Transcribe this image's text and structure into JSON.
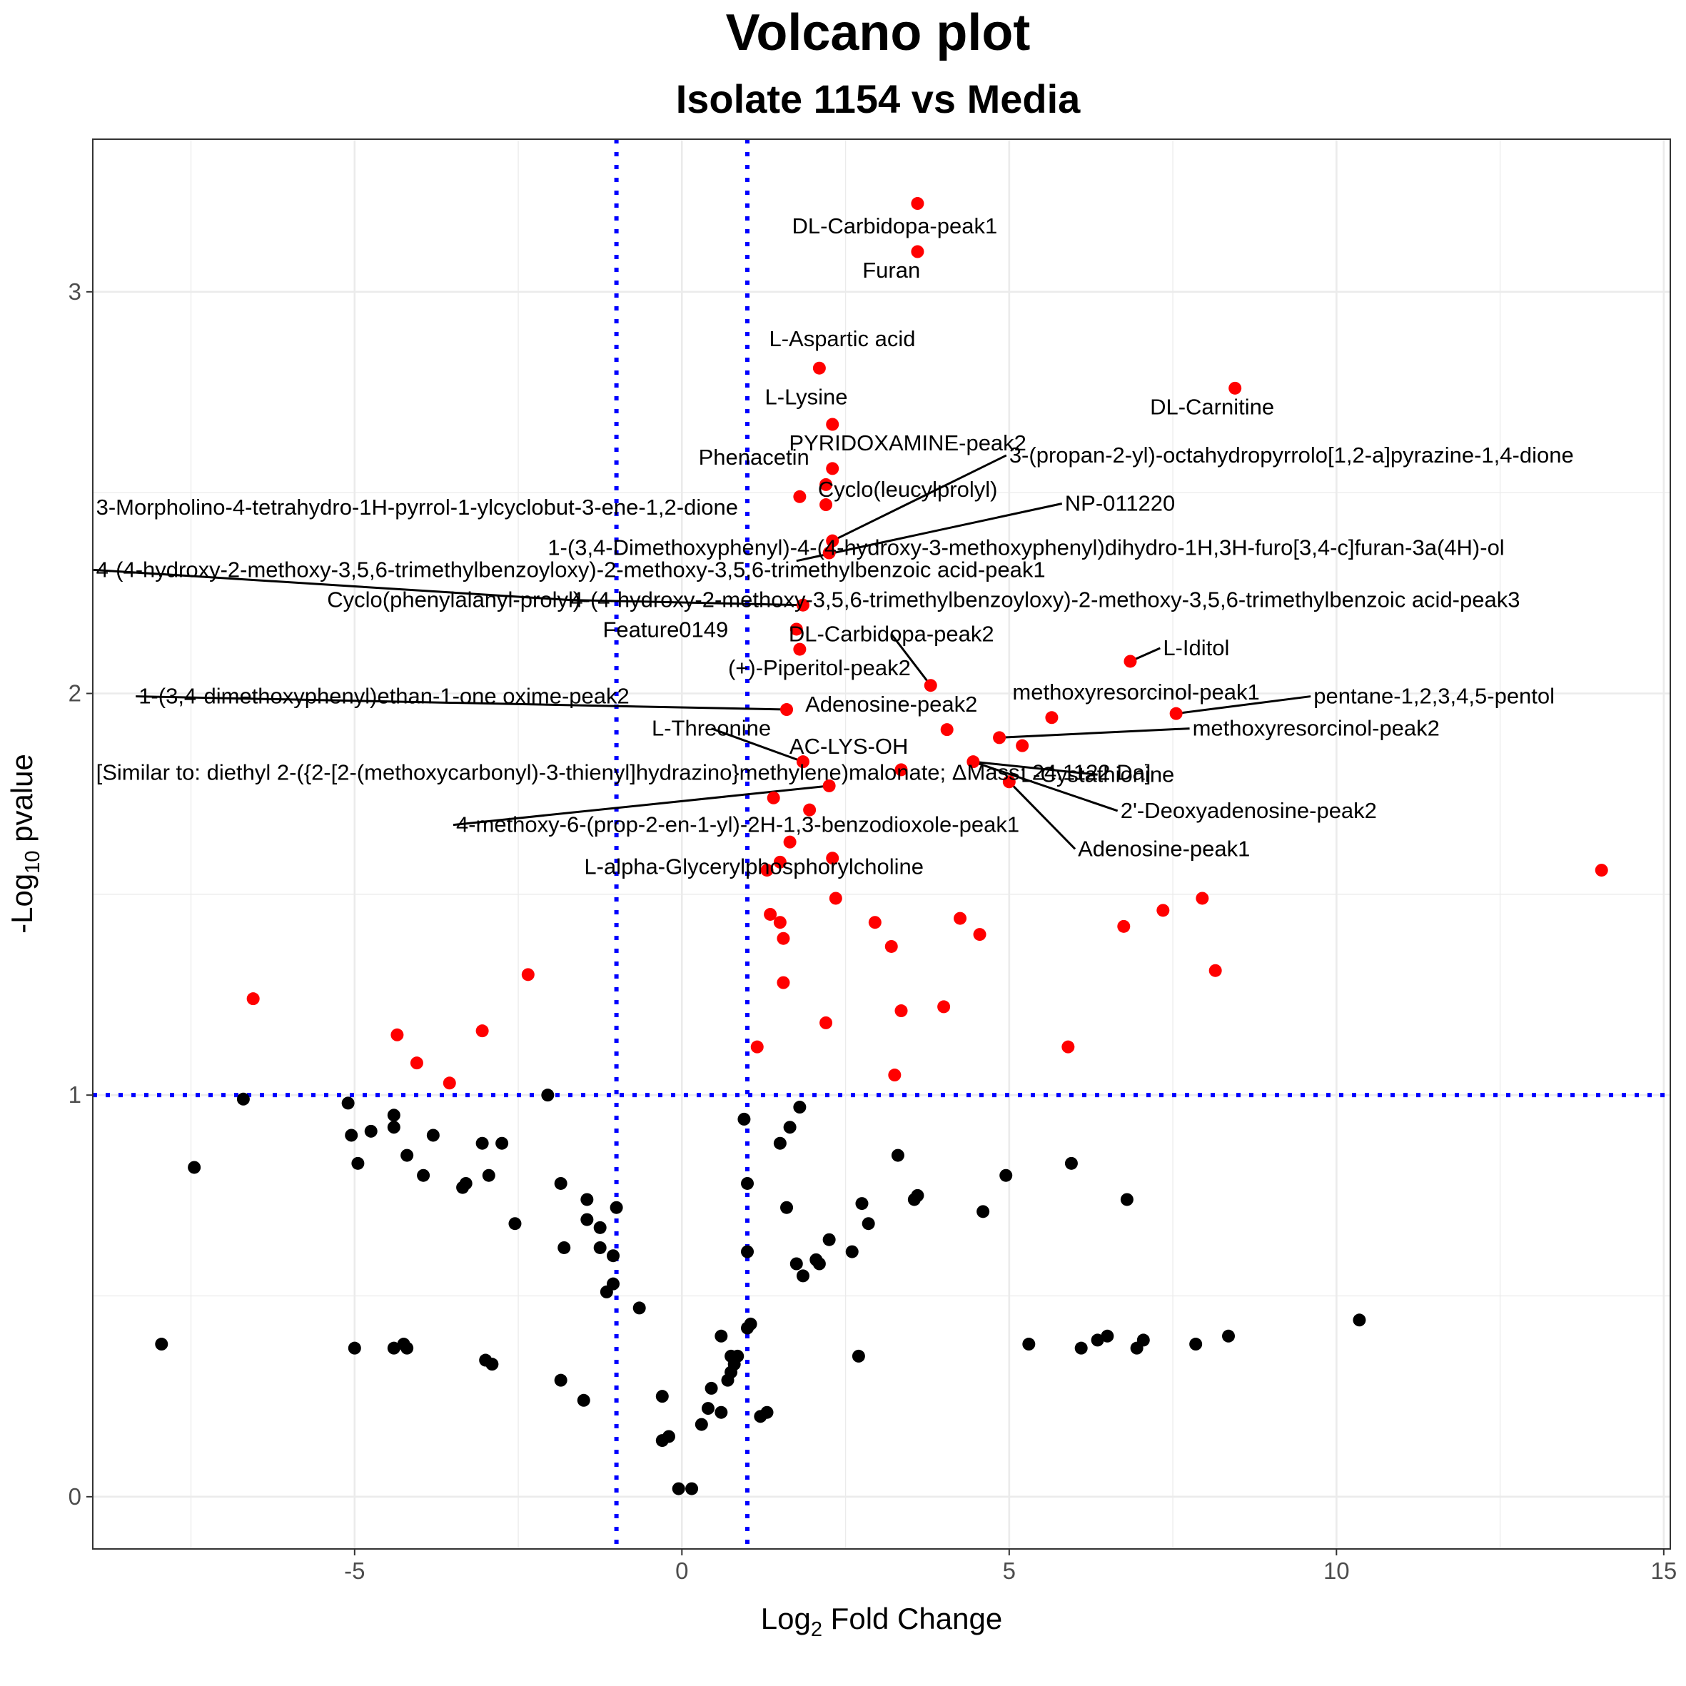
{
  "chart_data": {
    "type": "scatter",
    "title": "Volcano plot",
    "subtitle": "Isolate 1154 vs Media",
    "xlabel": {
      "base": "Log",
      "sub": "2",
      "rest": " Fold Change"
    },
    "ylabel": {
      "base": "-Log",
      "sub": "10",
      "rest": " pvalue"
    },
    "xlim": [
      -9.0,
      15.1
    ],
    "ylim": [
      -0.13,
      3.38
    ],
    "xticks": [
      -5,
      0,
      5,
      10,
      15
    ],
    "xtick_labels": [
      "-5",
      "0",
      "5",
      "10",
      "15"
    ],
    "yticks": [
      0,
      1,
      2,
      3
    ],
    "ytick_labels": [
      "0",
      "1",
      "2",
      "3"
    ],
    "grid": true,
    "thresholds": {
      "fold_change": [
        -1,
        1
      ],
      "pvalue_neglog10": 1
    },
    "colors": {
      "significant": "#ff0000",
      "not_significant": "#000000",
      "threshold_line": "#0000ff",
      "grid": "#ebebeb",
      "panel_border": "#333333"
    },
    "significant_points": [
      [
        3.6,
        3.22
      ],
      [
        3.6,
        3.1
      ],
      [
        2.1,
        2.81
      ],
      [
        8.45,
        2.76
      ],
      [
        2.3,
        2.67
      ],
      [
        2.3,
        2.56
      ],
      [
        2.2,
        2.52
      ],
      [
        1.8,
        2.49
      ],
      [
        2.2,
        2.47
      ],
      [
        2.3,
        2.38
      ],
      [
        2.25,
        2.35
      ],
      [
        1.85,
        2.22
      ],
      [
        1.75,
        2.16
      ],
      [
        1.8,
        2.11
      ],
      [
        6.85,
        2.08
      ],
      [
        3.8,
        2.02
      ],
      [
        1.6,
        1.96
      ],
      [
        5.65,
        1.94
      ],
      [
        7.55,
        1.95
      ],
      [
        4.05,
        1.91
      ],
      [
        4.85,
        1.89
      ],
      [
        5.2,
        1.87
      ],
      [
        1.85,
        1.83
      ],
      [
        4.45,
        1.83
      ],
      [
        3.35,
        1.81
      ],
      [
        5.0,
        1.78
      ],
      [
        2.25,
        1.77
      ],
      [
        1.4,
        1.74
      ],
      [
        1.95,
        1.71
      ],
      [
        1.65,
        1.63
      ],
      [
        2.3,
        1.59
      ],
      [
        1.5,
        1.58
      ],
      [
        1.3,
        1.56
      ],
      [
        14.05,
        1.56
      ],
      [
        2.35,
        1.49
      ],
      [
        7.95,
        1.49
      ],
      [
        1.35,
        1.45
      ],
      [
        7.35,
        1.46
      ],
      [
        4.25,
        1.44
      ],
      [
        1.5,
        1.43
      ],
      [
        2.95,
        1.43
      ],
      [
        6.75,
        1.42
      ],
      [
        4.55,
        1.4
      ],
      [
        1.55,
        1.39
      ],
      [
        3.2,
        1.37
      ],
      [
        -2.35,
        1.3
      ],
      [
        8.15,
        1.31
      ],
      [
        1.55,
        1.28
      ],
      [
        -6.55,
        1.24
      ],
      [
        4.0,
        1.22
      ],
      [
        3.35,
        1.21
      ],
      [
        2.2,
        1.18
      ],
      [
        -3.05,
        1.16
      ],
      [
        -4.35,
        1.15
      ],
      [
        1.15,
        1.12
      ],
      [
        5.9,
        1.12
      ],
      [
        -4.05,
        1.08
      ],
      [
        3.25,
        1.05
      ],
      [
        -3.55,
        1.03
      ]
    ],
    "nonsignificant_points": [
      [
        -6.7,
        0.99
      ],
      [
        -2.05,
        1.0
      ],
      [
        -5.1,
        0.98
      ],
      [
        1.8,
        0.97
      ],
      [
        -4.4,
        0.95
      ],
      [
        0.95,
        0.94
      ],
      [
        1.65,
        0.92
      ],
      [
        -4.4,
        0.92
      ],
      [
        -4.75,
        0.91
      ],
      [
        -5.05,
        0.9
      ],
      [
        -3.8,
        0.9
      ],
      [
        1.5,
        0.88
      ],
      [
        -3.05,
        0.88
      ],
      [
        -2.75,
        0.88
      ],
      [
        3.3,
        0.85
      ],
      [
        -4.2,
        0.85
      ],
      [
        -4.95,
        0.83
      ],
      [
        5.95,
        0.83
      ],
      [
        -3.95,
        0.8
      ],
      [
        4.95,
        0.8
      ],
      [
        -2.95,
        0.8
      ],
      [
        -7.45,
        0.82
      ],
      [
        -1.85,
        0.78
      ],
      [
        1.0,
        0.78
      ],
      [
        -3.3,
        0.78
      ],
      [
        -3.35,
        0.77
      ],
      [
        -1.45,
        0.74
      ],
      [
        3.6,
        0.75
      ],
      [
        3.55,
        0.74
      ],
      [
        6.8,
        0.74
      ],
      [
        2.75,
        0.73
      ],
      [
        -1.0,
        0.72
      ],
      [
        1.6,
        0.72
      ],
      [
        4.6,
        0.71
      ],
      [
        -1.45,
        0.69
      ],
      [
        -2.55,
        0.68
      ],
      [
        2.85,
        0.68
      ],
      [
        -1.25,
        0.67
      ],
      [
        2.25,
        0.64
      ],
      [
        -1.8,
        0.62
      ],
      [
        -1.25,
        0.62
      ],
      [
        1.0,
        0.61
      ],
      [
        2.6,
        0.61
      ],
      [
        -1.05,
        0.6
      ],
      [
        2.05,
        0.59
      ],
      [
        2.1,
        0.58
      ],
      [
        1.75,
        0.58
      ],
      [
        1.85,
        0.55
      ],
      [
        -1.05,
        0.53
      ],
      [
        -1.15,
        0.51
      ],
      [
        -0.65,
        0.47
      ],
      [
        1.05,
        0.43
      ],
      [
        10.35,
        0.44
      ],
      [
        1.0,
        0.42
      ],
      [
        0.6,
        0.4
      ],
      [
        -7.95,
        0.38
      ],
      [
        8.35,
        0.4
      ],
      [
        6.35,
        0.39
      ],
      [
        6.5,
        0.4
      ],
      [
        7.05,
        0.39
      ],
      [
        7.85,
        0.38
      ],
      [
        5.3,
        0.38
      ],
      [
        -4.25,
        0.38
      ],
      [
        6.95,
        0.37
      ],
      [
        -5.0,
        0.37
      ],
      [
        -4.4,
        0.37
      ],
      [
        -4.2,
        0.37
      ],
      [
        6.1,
        0.37
      ],
      [
        0.85,
        0.35
      ],
      [
        0.75,
        0.35
      ],
      [
        2.7,
        0.35
      ],
      [
        -3.0,
        0.34
      ],
      [
        0.8,
        0.33
      ],
      [
        -2.9,
        0.33
      ],
      [
        0.75,
        0.31
      ],
      [
        -1.85,
        0.29
      ],
      [
        0.7,
        0.29
      ],
      [
        0.45,
        0.27
      ],
      [
        -1.5,
        0.24
      ],
      [
        -0.3,
        0.25
      ],
      [
        0.4,
        0.22
      ],
      [
        1.3,
        0.21
      ],
      [
        0.6,
        0.21
      ],
      [
        1.2,
        0.2
      ],
      [
        0.3,
        0.18
      ],
      [
        -0.2,
        0.15
      ],
      [
        -0.3,
        0.14
      ],
      [
        0.15,
        0.02
      ],
      [
        -0.05,
        0.02
      ]
    ],
    "labels": [
      {
        "text": "DL-Carbidopa-peak1",
        "tx": 3.25,
        "ty": 3.145,
        "anchor": "middle",
        "px": 3.6,
        "py": 3.22,
        "line": false
      },
      {
        "text": "Furan",
        "tx": 3.2,
        "ty": 3.035,
        "anchor": "middle",
        "px": 3.6,
        "py": 3.1,
        "line": false
      },
      {
        "text": "L-Aspartic acid",
        "tx": 2.45,
        "ty": 2.865,
        "anchor": "middle",
        "px": 2.1,
        "py": 2.81,
        "line": false
      },
      {
        "text": "DL-Carnitine",
        "tx": 8.1,
        "ty": 2.695,
        "anchor": "middle",
        "px": 8.45,
        "py": 2.76,
        "line": false
      },
      {
        "text": "L-Lysine",
        "tx": 1.9,
        "ty": 2.72,
        "anchor": "middle",
        "px": 2.3,
        "py": 2.67,
        "line": false
      },
      {
        "text": "PYRIDOXAMINE-peak2",
        "tx": 3.45,
        "ty": 2.605,
        "anchor": "middle",
        "px": 2.3,
        "py": 2.56,
        "line": false
      },
      {
        "text": "Phenacetin",
        "tx": 1.1,
        "ty": 2.57,
        "anchor": "middle",
        "px": 2.2,
        "py": 2.52,
        "line": false
      },
      {
        "text": "3-(propan-2-yl)-octahydropyrrolo[1,2-a]pyrazine-1,4-dione",
        "tx": 5.0,
        "ty": 2.575,
        "anchor": "start",
        "px": 2.3,
        "py": 2.38,
        "line": true
      },
      {
        "text": "Cyclo(leucylprolyl)",
        "tx": 3.45,
        "ty": 2.49,
        "anchor": "middle",
        "px": 2.2,
        "py": 2.47,
        "line": false
      },
      {
        "text": "NP-011220",
        "tx": 5.85,
        "ty": 2.455,
        "anchor": "start",
        "px": 1.75,
        "py": 2.33,
        "line": true
      },
      {
        "text": "3-Morpholino-4-tetrahydro-1H-pyrrol-1-ylcyclobut-3-ene-1,2-dione",
        "tx": -8.95,
        "ty": 2.445,
        "anchor": "start",
        "px": 2.25,
        "py": 2.35,
        "line": false
      },
      {
        "text": "1-(3,4-Dimethoxyphenyl)-4-(4-hydroxy-3-methoxyphenyl)dihydro-1H,3H-furo[3,4-c]furan-3a(4H)-ol",
        "tx": -2.05,
        "ty": 2.345,
        "anchor": "start",
        "px": 1.6,
        "py": 2.31,
        "line": false
      },
      {
        "text": "4-(4-hydroxy-2-methoxy-3,5,6-trimethylbenzoyloxy)-2-methoxy-3,5,6-trimethylbenzoic acid-peak1",
        "tx": -8.95,
        "ty": 2.29,
        "anchor": "start",
        "px": -1.45,
        "py": 2.23,
        "line": true
      },
      {
        "text": "4-(4-hydroxy-2-methoxy-3,5,6-trimethylbenzoyloxy)-2-methoxy-3,5,6-trimethylbenzoic acid-peak3",
        "tx": -1.7,
        "ty": 2.215,
        "anchor": "start",
        "px": 1.85,
        "py": 2.22,
        "line": true
      },
      {
        "text": "Cyclo(phenylalanyl-prolyl)",
        "tx": -1.55,
        "ty": 2.215,
        "anchor": "end",
        "px": -1.45,
        "py": 2.23,
        "line": false
      },
      {
        "text": "Feature0149",
        "tx": -0.25,
        "ty": 2.14,
        "anchor": "middle",
        "px": 1.75,
        "py": 2.16,
        "line": false
      },
      {
        "text": "DL-Carbidopa-peak2",
        "tx": 3.2,
        "ty": 2.13,
        "anchor": "middle",
        "px": 3.8,
        "py": 2.02,
        "line": true
      },
      {
        "text": "L-Iditol",
        "tx": 7.35,
        "ty": 2.095,
        "anchor": "start",
        "px": 6.85,
        "py": 2.08,
        "line": true
      },
      {
        "text": "(+)-Piperitol-peak2",
        "tx": 2.1,
        "ty": 2.045,
        "anchor": "middle",
        "px": 1.8,
        "py": 2.11,
        "line": false
      },
      {
        "text": "1-(3,4-dimethoxyphenyl)ethan-1-one oxime-peak2",
        "tx": -8.3,
        "ty": 1.975,
        "anchor": "start",
        "px": 1.6,
        "py": 1.96,
        "line": true
      },
      {
        "text": "methoxyresorcinol-peak1",
        "tx": 5.05,
        "ty": 1.985,
        "anchor": "start",
        "px": 5.65,
        "py": 1.94,
        "line": false
      },
      {
        "text": "pentane-1,2,3,4,5-pentol",
        "tx": 9.65,
        "ty": 1.975,
        "anchor": "start",
        "px": 7.55,
        "py": 1.95,
        "line": true
      },
      {
        "text": "Adenosine-peak2",
        "tx": 3.2,
        "ty": 1.955,
        "anchor": "middle",
        "px": 4.05,
        "py": 1.91,
        "line": false
      },
      {
        "text": "L-Threonine",
        "tx": 0.45,
        "ty": 1.895,
        "anchor": "middle",
        "px": 1.85,
        "py": 1.83,
        "line": true
      },
      {
        "text": "methoxyresorcinol-peak2",
        "tx": 7.8,
        "ty": 1.895,
        "anchor": "start",
        "px": 4.85,
        "py": 1.89,
        "line": true
      },
      {
        "text": "AC-LYS-OH",
        "tx": 2.55,
        "ty": 1.85,
        "anchor": "middle",
        "px": 2.25,
        "py": 1.77,
        "line": false
      },
      {
        "text": "[Similar to: diethyl 2-({2-[2-(methoxycarbonyl)-3-thienyl]hydrazino}methylene)malonate; ΔMass: 24.1122 Da]",
        "tx": -8.95,
        "ty": 1.785,
        "anchor": "start",
        "px": 5.0,
        "py": 1.78,
        "line": false
      },
      {
        "text": "L-Cystathionine",
        "tx": 6.35,
        "ty": 1.78,
        "anchor": "middle",
        "px": 4.45,
        "py": 1.83,
        "line": true
      },
      {
        "text": "2'-Deoxyadenosine-peak2",
        "tx": 6.7,
        "ty": 1.69,
        "anchor": "start",
        "px": 4.45,
        "py": 1.83,
        "line": true
      },
      {
        "text": "4-methoxy-6-(prop-2-en-1-yl)-2H-1,3-benzodioxole-peak1",
        "tx": -3.45,
        "ty": 1.655,
        "anchor": "start",
        "px": 2.25,
        "py": 1.77,
        "line": true
      },
      {
        "text": "Adenosine-peak1",
        "tx": 6.05,
        "ty": 1.595,
        "anchor": "start",
        "px": 5.0,
        "py": 1.78,
        "line": true
      },
      {
        "text": "L-alpha-Glycerylphosphorylcholine",
        "tx": 1.1,
        "ty": 1.55,
        "anchor": "middle",
        "px": 1.4,
        "py": 1.58,
        "line": false
      }
    ]
  }
}
